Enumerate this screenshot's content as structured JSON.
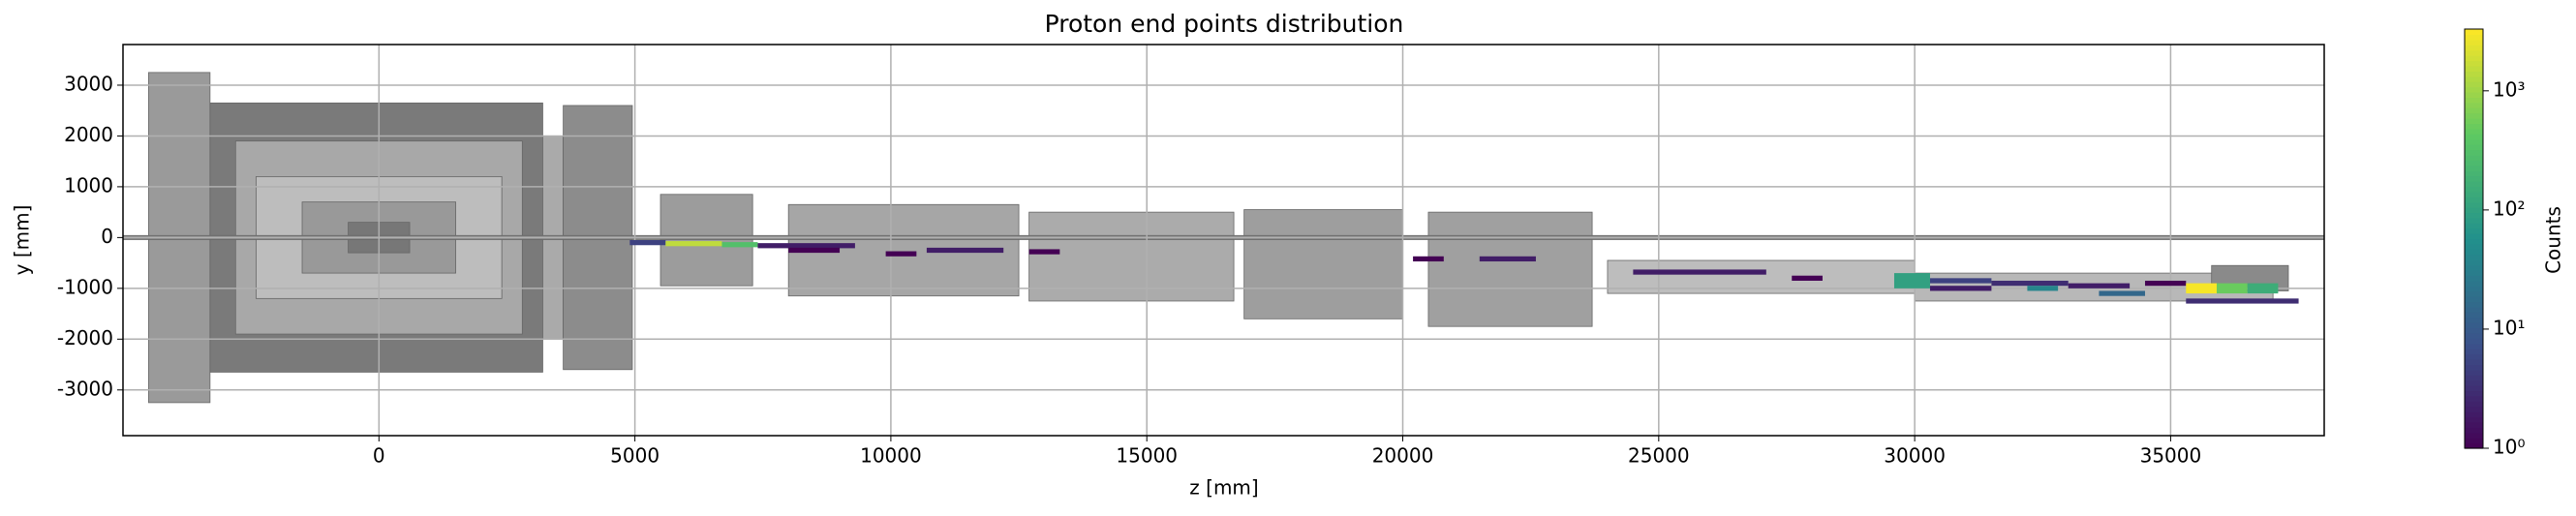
{
  "chart_data": {
    "type": "heatmap2d",
    "title": "Proton end points distribution",
    "x_label": "z [mm]",
    "y_label": "y [mm]",
    "xlim": [
      -5000,
      38000
    ],
    "ylim": [
      -3900,
      3800
    ],
    "xticks": [
      0,
      5000,
      10000,
      15000,
      20000,
      25000,
      30000,
      35000
    ],
    "yticks": [
      -3000,
      -2000,
      -1000,
      0,
      1000,
      2000,
      3000
    ],
    "grid": true,
    "colormap": "viridis",
    "color_scale": "log",
    "colorbar_label": "Counts",
    "clim": [
      1,
      3300
    ],
    "cticks": [
      {
        "value": 1,
        "label": "10⁰"
      },
      {
        "value": 10,
        "label": "10¹"
      },
      {
        "value": 100,
        "label": "10²"
      },
      {
        "value": 1000,
        "label": "10³"
      }
    ],
    "cells": [
      {
        "z": [
          4900,
          5600
        ],
        "y": [
          -150,
          -50
        ],
        "count": 5
      },
      {
        "z": [
          5600,
          6700
        ],
        "y": [
          -170,
          -70
        ],
        "count": 1500
      },
      {
        "z": [
          6700,
          7400
        ],
        "y": [
          -190,
          -90
        ],
        "count": 300
      },
      {
        "z": [
          7400,
          9300
        ],
        "y": [
          -210,
          -110
        ],
        "count": 2
      },
      {
        "z": [
          8000,
          9000
        ],
        "y": [
          -300,
          -200
        ],
        "count": 1
      },
      {
        "z": [
          9900,
          10500
        ],
        "y": [
          -370,
          -270
        ],
        "count": 1
      },
      {
        "z": [
          10700,
          12200
        ],
        "y": [
          -300,
          -200
        ],
        "count": 2
      },
      {
        "z": [
          12700,
          13300
        ],
        "y": [
          -330,
          -230
        ],
        "count": 1
      },
      {
        "z": [
          20200,
          20800
        ],
        "y": [
          -470,
          -370
        ],
        "count": 1
      },
      {
        "z": [
          21500,
          22600
        ],
        "y": [
          -470,
          -370
        ],
        "count": 2
      },
      {
        "z": [
          24500,
          27100
        ],
        "y": [
          -730,
          -630
        ],
        "count": 2
      },
      {
        "z": [
          27600,
          28200
        ],
        "y": [
          -850,
          -750
        ],
        "count": 1
      },
      {
        "z": [
          29600,
          30300
        ],
        "y": [
          -1000,
          -700
        ],
        "count": 100
      },
      {
        "z": [
          30300,
          31500
        ],
        "y": [
          -900,
          -800
        ],
        "count": 5
      },
      {
        "z": [
          30300,
          31500
        ],
        "y": [
          -1050,
          -950
        ],
        "count": 2
      },
      {
        "z": [
          31500,
          33000
        ],
        "y": [
          -950,
          -850
        ],
        "count": 3
      },
      {
        "z": [
          32200,
          32800
        ],
        "y": [
          -1050,
          -950
        ],
        "count": 40
      },
      {
        "z": [
          33000,
          34200
        ],
        "y": [
          -1000,
          -900
        ],
        "count": 2
      },
      {
        "z": [
          33600,
          34500
        ],
        "y": [
          -1150,
          -1050
        ],
        "count": 15
      },
      {
        "z": [
          34500,
          35300
        ],
        "y": [
          -950,
          -850
        ],
        "count": 1
      },
      {
        "z": [
          35300,
          35900
        ],
        "y": [
          -1100,
          -900
        ],
        "count": 3000
      },
      {
        "z": [
          35900,
          36500
        ],
        "y": [
          -1100,
          -900
        ],
        "count": 500
      },
      {
        "z": [
          36500,
          37100
        ],
        "y": [
          -1100,
          -900
        ],
        "count": 150
      },
      {
        "z": [
          35300,
          37500
        ],
        "y": [
          -1300,
          -1200
        ],
        "count": 3
      }
    ]
  }
}
